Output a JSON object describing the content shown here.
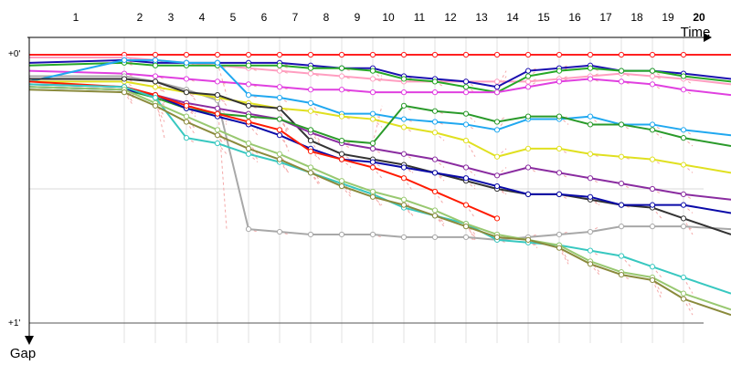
{
  "chart_data": {
    "type": "line",
    "title": "",
    "xlabel": "Time",
    "ylabel": "Gap",
    "x_ticks": [
      "1",
      "2",
      "3",
      "4",
      "5",
      "6",
      "7",
      "8",
      "9",
      "10",
      "11",
      "12",
      "13",
      "14",
      "15",
      "16",
      "17",
      "18",
      "19",
      "20"
    ],
    "y_ticks": [
      "+0'",
      "+1'"
    ],
    "xlim": [
      0,
      20.6
    ],
    "ylim": [
      -0.01,
      1.05
    ],
    "y_inverted": true,
    "grid": true,
    "transition_lines_color": "#f4a9a9",
    "series": [
      {
        "color": "#ff2020",
        "values": [
          0.0,
          0.0,
          0.0,
          0.0,
          0.0,
          0.0,
          0.0,
          0.0,
          0.0,
          0.0,
          0.0,
          0.0,
          0.0,
          0.0,
          0.0,
          0.0,
          0.0,
          0.0,
          0.0,
          0.0,
          0.0
        ]
      },
      {
        "color": "#ff9ec0",
        "values": [
          0.01,
          0.01,
          0.02,
          0.03,
          0.04,
          0.05,
          0.06,
          0.07,
          0.08,
          0.09,
          0.1,
          0.1,
          0.1,
          0.1,
          0.1,
          0.09,
          0.08,
          0.07,
          0.08,
          0.09,
          0.11
        ]
      },
      {
        "color": "#1a10b0",
        "values": [
          0.03,
          0.02,
          0.03,
          0.03,
          0.03,
          0.03,
          0.03,
          0.04,
          0.05,
          0.05,
          0.08,
          0.09,
          0.1,
          0.12,
          0.06,
          0.05,
          0.04,
          0.06,
          0.06,
          0.07,
          0.09
        ]
      },
      {
        "color": "#26a826",
        "values": [
          0.04,
          0.03,
          0.04,
          0.04,
          0.04,
          0.04,
          0.04,
          0.05,
          0.05,
          0.06,
          0.09,
          0.1,
          0.12,
          0.14,
          0.08,
          0.06,
          0.05,
          0.06,
          0.06,
          0.08,
          0.1
        ]
      },
      {
        "color": "#e040e0",
        "values": [
          0.06,
          0.07,
          0.08,
          0.09,
          0.1,
          0.11,
          0.12,
          0.13,
          0.13,
          0.14,
          0.14,
          0.14,
          0.14,
          0.14,
          0.12,
          0.1,
          0.09,
          0.1,
          0.11,
          0.13,
          0.15
        ]
      },
      {
        "color": "#a8a8a8",
        "values": [
          0.08,
          0.08,
          0.1,
          0.13,
          0.17,
          0.65,
          0.66,
          0.67,
          0.67,
          0.67,
          0.68,
          0.68,
          0.68,
          0.69,
          0.68,
          0.67,
          0.66,
          0.64,
          0.64,
          0.64,
          0.65
        ]
      },
      {
        "color": "#20a8f0",
        "values": [
          0.1,
          0.02,
          0.02,
          0.03,
          0.03,
          0.15,
          0.16,
          0.18,
          0.22,
          0.22,
          0.24,
          0.25,
          0.26,
          0.28,
          0.24,
          0.24,
          0.23,
          0.26,
          0.26,
          0.28,
          0.3
        ]
      },
      {
        "color": "#e0e020",
        "values": [
          0.1,
          0.1,
          0.12,
          0.14,
          0.16,
          0.18,
          0.2,
          0.21,
          0.23,
          0.24,
          0.27,
          0.29,
          0.32,
          0.38,
          0.35,
          0.35,
          0.37,
          0.38,
          0.39,
          0.41,
          0.44
        ]
      },
      {
        "color": "#333333",
        "values": [
          0.09,
          0.09,
          0.1,
          0.14,
          0.15,
          0.19,
          0.2,
          0.32,
          0.37,
          0.39,
          0.41,
          0.44,
          0.47,
          0.5,
          0.52,
          0.52,
          0.54,
          0.56,
          0.57,
          0.61,
          0.67
        ]
      },
      {
        "color": "#8a2ca0",
        "values": [
          0.11,
          0.12,
          0.15,
          0.18,
          0.2,
          0.22,
          0.24,
          0.29,
          0.33,
          0.35,
          0.37,
          0.39,
          0.42,
          0.45,
          0.42,
          0.44,
          0.46,
          0.48,
          0.5,
          0.52,
          0.54
        ]
      },
      {
        "color": "#2a9a2a",
        "values": [
          0.12,
          0.13,
          0.16,
          0.2,
          0.22,
          0.23,
          0.24,
          0.28,
          0.32,
          0.33,
          0.19,
          0.21,
          0.22,
          0.25,
          0.23,
          0.23,
          0.26,
          0.26,
          0.28,
          0.31,
          0.34
        ]
      },
      {
        "color": "#0a0aa8",
        "values": [
          0.12,
          0.13,
          0.15,
          0.2,
          0.23,
          0.26,
          0.3,
          0.35,
          0.39,
          0.4,
          0.42,
          0.44,
          0.46,
          0.49,
          0.52,
          0.52,
          0.53,
          0.56,
          0.56,
          0.56,
          0.59
        ]
      },
      {
        "color": "#ff1a00",
        "values": [
          0.1,
          0.12,
          0.15,
          0.19,
          0.22,
          0.25,
          0.28,
          0.36,
          0.39,
          0.42,
          0.46,
          0.51,
          0.56,
          0.61
        ]
      },
      {
        "color": "#38c8c0",
        "values": [
          0.11,
          0.12,
          0.16,
          0.31,
          0.33,
          0.37,
          0.4,
          0.44,
          0.48,
          0.52,
          0.57,
          0.6,
          0.63,
          0.69,
          0.7,
          0.71,
          0.73,
          0.75,
          0.79,
          0.83,
          0.89
        ]
      },
      {
        "color": "#98c870",
        "values": [
          0.12,
          0.13,
          0.18,
          0.23,
          0.28,
          0.33,
          0.37,
          0.42,
          0.47,
          0.51,
          0.54,
          0.58,
          0.63,
          0.67,
          0.69,
          0.71,
          0.77,
          0.81,
          0.83,
          0.89,
          0.95
        ]
      },
      {
        "color": "#8a8a3c",
        "values": [
          0.13,
          0.14,
          0.19,
          0.25,
          0.3,
          0.35,
          0.39,
          0.44,
          0.49,
          0.53,
          0.56,
          0.6,
          0.64,
          0.68,
          0.69,
          0.72,
          0.78,
          0.82,
          0.84,
          0.91,
          0.97
        ]
      }
    ]
  }
}
